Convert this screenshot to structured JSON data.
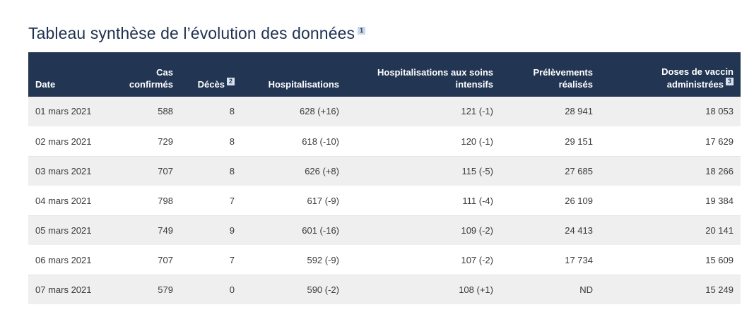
{
  "title": "Tableau synthèse de l’évolution des données",
  "title_footnote": "1",
  "columns": [
    {
      "l1": "",
      "l2": "Date",
      "note": ""
    },
    {
      "l1": "Cas",
      "l2": "confirmés",
      "note": ""
    },
    {
      "l1": "",
      "l2": "Décès",
      "note": "2"
    },
    {
      "l1": "",
      "l2": "Hospitalisations",
      "note": ""
    },
    {
      "l1": "Hospitalisations aux soins",
      "l2": "intensifs",
      "note": ""
    },
    {
      "l1": "Prélèvements",
      "l2": "réalisés",
      "note": ""
    },
    {
      "l1": "Doses de vaccin",
      "l2": "administrées",
      "note": "3"
    }
  ],
  "rows": [
    [
      "01 mars 2021",
      "588",
      "8",
      "628 (+16)",
      "121 (-1)",
      "28 941",
      "18 053"
    ],
    [
      "02 mars 2021",
      "729",
      "8",
      "618 (-10)",
      "120 (-1)",
      "29 151",
      "17 629"
    ],
    [
      "03 mars 2021",
      "707",
      "8",
      "626 (+8)",
      "115 (-5)",
      "27 685",
      "18 266"
    ],
    [
      "04 mars 2021",
      "798",
      "7",
      "617 (-9)",
      "111 (-4)",
      "26 109",
      "19 384"
    ],
    [
      "05 mars 2021",
      "749",
      "9",
      "601 (-16)",
      "109 (-2)",
      "24 413",
      "20 141"
    ],
    [
      "06 mars 2021",
      "707",
      "7",
      "592 (-9)",
      "107 (-2)",
      "17 734",
      "15 609"
    ],
    [
      "07 mars 2021",
      "579",
      "0",
      "590 (-2)",
      "108 (+1)",
      "ND",
      "15 249"
    ]
  ],
  "colors": {
    "header_bg": "#223654",
    "title": "#1f3150",
    "stripe": "#efefef"
  }
}
